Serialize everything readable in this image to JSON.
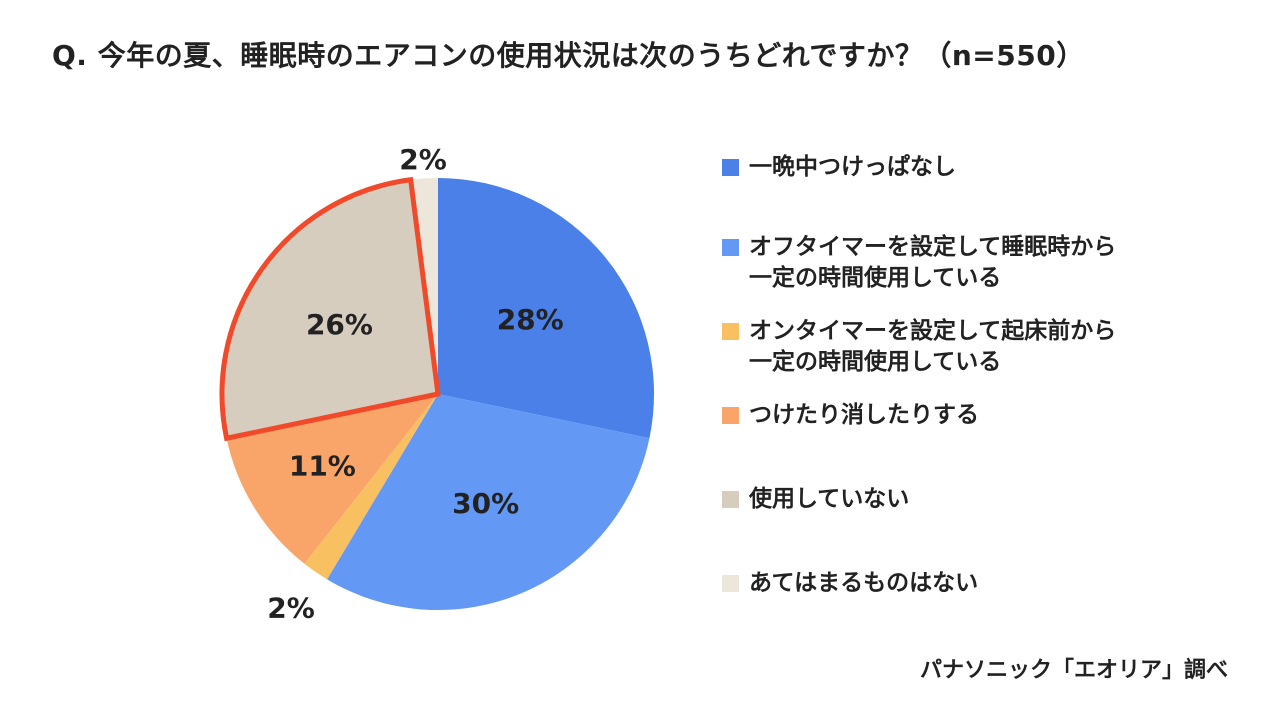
{
  "title": "Q. 今年の夏、睡眠時のエアコンの使用状況は次のうちどれですか？（n=550）",
  "source": "パナソニック「エオリア」調べ",
  "chart_data": {
    "type": "pie",
    "categories": [
      "一晩中つけっぱなし",
      "オフタイマーを設定して睡眠時から\n一定の時間使用している",
      "オンタイマーを設定して起床前から\n一定の時間使用している",
      "つけたり消したりする",
      "使用していない",
      "あてはまるものはない"
    ],
    "values": [
      28,
      30,
      2,
      11,
      26,
      2
    ],
    "labels": [
      "28%",
      "30%",
      "2%",
      "11%",
      "26%",
      "2%"
    ],
    "colors": [
      "#4a80e8",
      "#6399f5",
      "#f9c062",
      "#f9a56a",
      "#d6cdbf",
      "#ede6db"
    ],
    "highlight_index": 4,
    "highlight_color": "#f04a2a",
    "legend": "right"
  }
}
